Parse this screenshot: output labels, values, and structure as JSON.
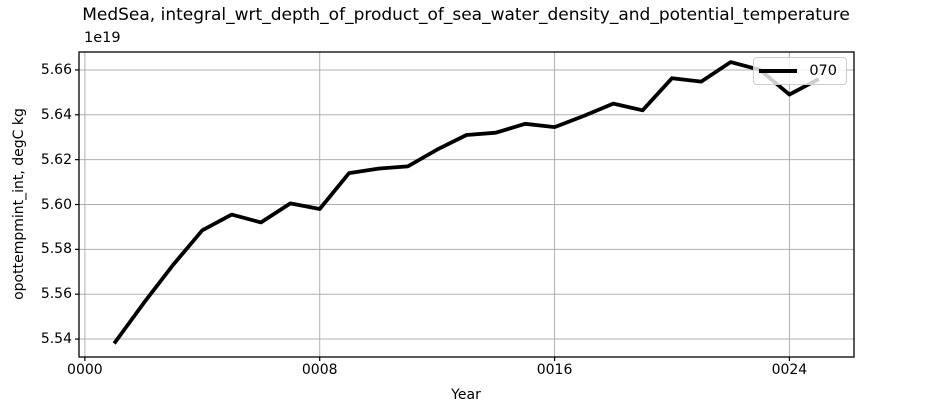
{
  "chart_data": {
    "type": "line",
    "title": "MedSea, integral_wrt_depth_of_product_of_sea_water_density_and_potential_temperature",
    "xlabel": "Year",
    "ylabel": "opottempmint_int, degC kg",
    "y_offset_factor": "1e19",
    "x": [
      1,
      2,
      3,
      4,
      5,
      6,
      7,
      8,
      9,
      10,
      11,
      12,
      13,
      14,
      15,
      16,
      17,
      18,
      19,
      20,
      21,
      22,
      23,
      24,
      25
    ],
    "series": [
      {
        "name": "070",
        "color": "#000000",
        "values": [
          5.538,
          5.556,
          5.573,
          5.5885,
          5.5955,
          5.592,
          5.6005,
          5.598,
          5.614,
          5.616,
          5.617,
          5.6245,
          5.631,
          5.632,
          5.636,
          5.6345,
          5.6395,
          5.645,
          5.642,
          5.6563,
          5.6548,
          5.6635,
          5.66,
          5.649,
          5.656
        ]
      }
    ],
    "xlim": [
      -0.2,
      26.2
    ],
    "ylim": [
      5.532,
      5.668
    ],
    "xticks": {
      "values": [
        0,
        8,
        16,
        24
      ],
      "labels": [
        "0000",
        "0008",
        "0016",
        "0024"
      ]
    },
    "yticks": {
      "values": [
        5.54,
        5.56,
        5.58,
        5.6,
        5.62,
        5.64,
        5.66
      ],
      "labels": [
        "5.54",
        "5.56",
        "5.58",
        "5.60",
        "5.62",
        "5.64",
        "5.66"
      ]
    },
    "grid": true,
    "legend": {
      "position": "upper right",
      "entries": [
        "070"
      ]
    }
  },
  "colors": {
    "line": "#000000",
    "grid": "#b0b0b0",
    "spine": "#000000",
    "text": "#000000",
    "legend_border": "#cccccc",
    "background": "#ffffff"
  }
}
